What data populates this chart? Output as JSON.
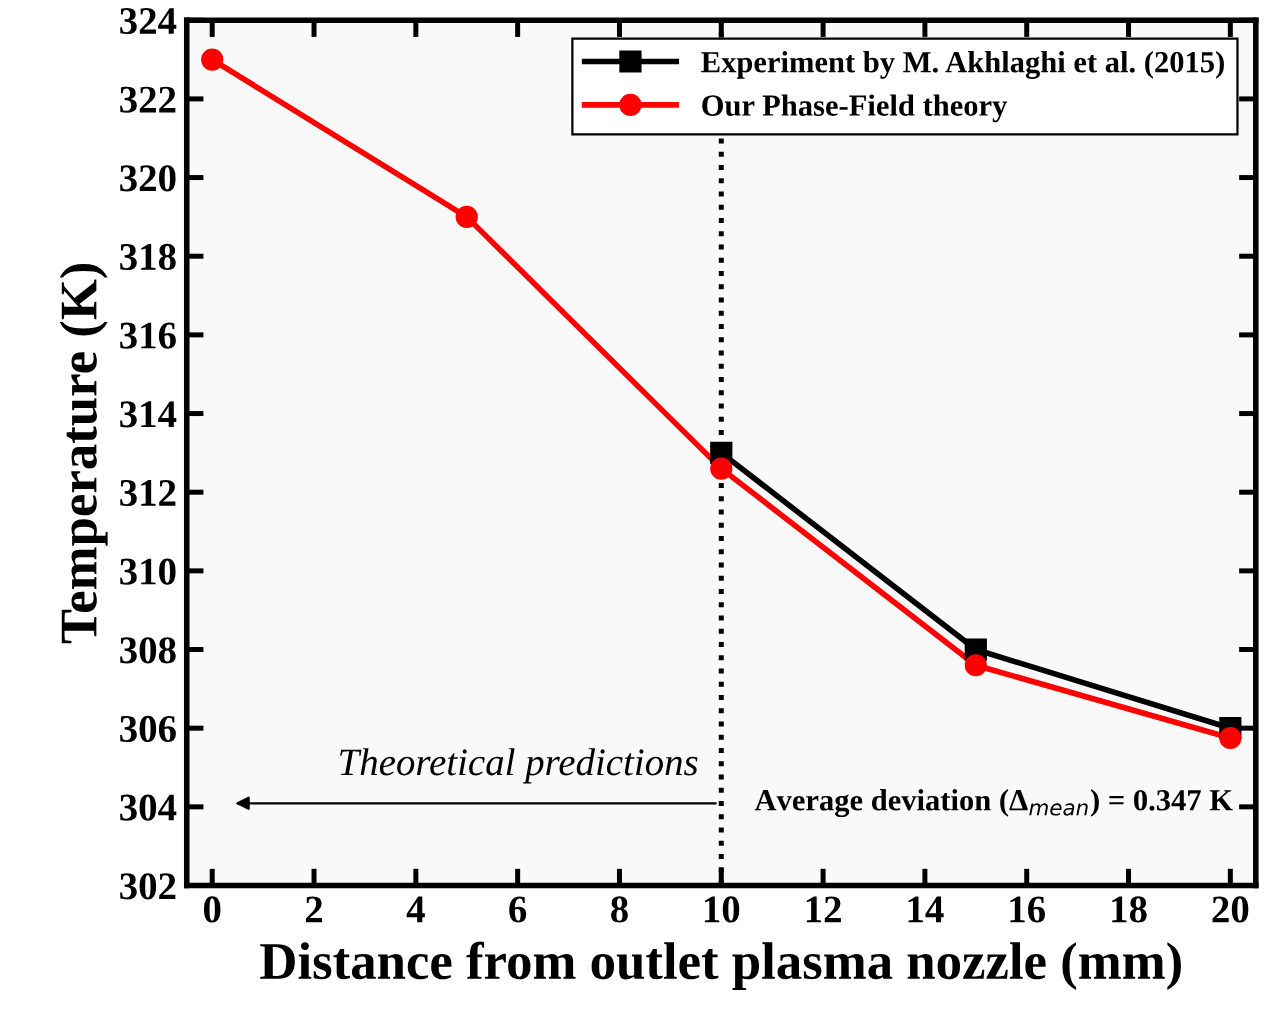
{
  "chart_data": {
    "type": "line",
    "xlabel": "Distance from outlet plasma nozzle (mm)",
    "ylabel": "Temperature (K)",
    "xlim": [
      -0.5,
      20.5
    ],
    "xticks": [
      0,
      2,
      4,
      6,
      8,
      10,
      12,
      14,
      16,
      18,
      20
    ],
    "ylim": [
      302,
      324
    ],
    "yticks": [
      302,
      304,
      306,
      308,
      310,
      312,
      314,
      316,
      318,
      320,
      322,
      324
    ],
    "series": [
      {
        "name": "Experiment by M. Akhlaghi et al. (2015)",
        "color": "#000000",
        "marker": "square",
        "x": [
          10,
          15,
          20
        ],
        "values": [
          313.0,
          308.0,
          306.0
        ]
      },
      {
        "name": "Our Phase-Field theory",
        "color": "#ff0000",
        "marker": "circle",
        "x": [
          0,
          5,
          10,
          15,
          20
        ],
        "values": [
          323.0,
          319.0,
          312.6,
          307.6,
          305.75
        ]
      }
    ],
    "ref_lines": [
      {
        "axis": "x",
        "value": 10,
        "line_style": "dotted",
        "color": "#000000"
      }
    ],
    "annotations": [
      "Theoretical predictions",
      "Average deviation (Δ$_{mean}$) = 0.347 K"
    ],
    "legend": "top right",
    "grid": false,
    "line_style": "solid"
  }
}
